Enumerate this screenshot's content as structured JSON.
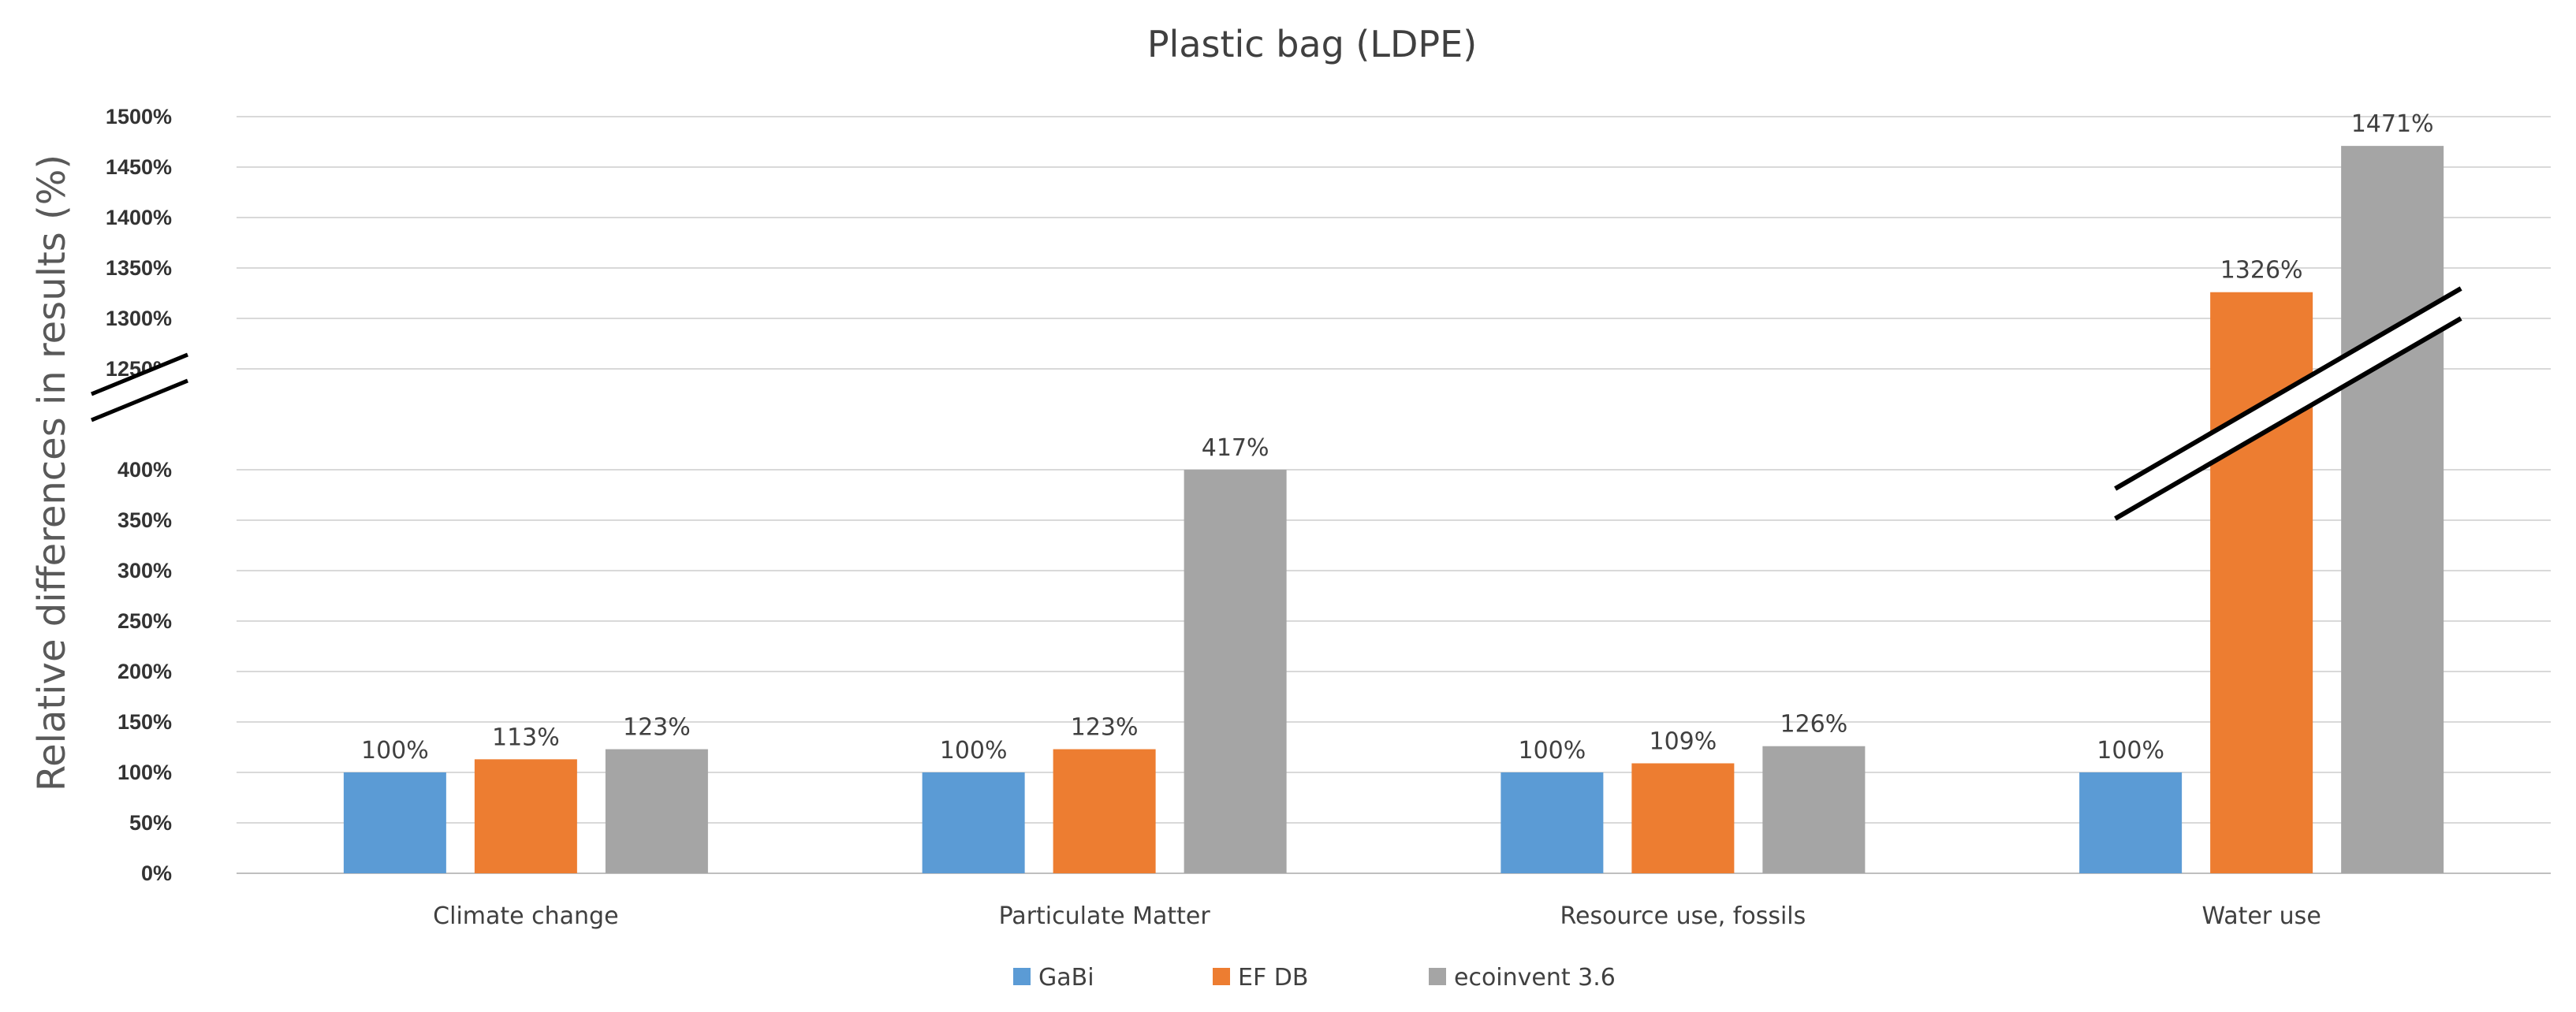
{
  "chart_data": {
    "type": "bar",
    "title": "Plastic bag (LDPE)",
    "ylabel": "Relative differences in results (%)",
    "xlabel": "",
    "categories": [
      "Climate change",
      "Particulate Matter",
      "Resource use, fossils",
      "Water use"
    ],
    "series": [
      {
        "name": "GaBi",
        "color": "#5B9BD5",
        "values": [
          100,
          100,
          100,
          100
        ],
        "labels": [
          "100%",
          "100%",
          "100%",
          "100%"
        ]
      },
      {
        "name": "EF DB",
        "color": "#ED7D31",
        "values": [
          113,
          123,
          109,
          1326
        ],
        "labels": [
          "113%",
          "123%",
          "109%",
          "1326%"
        ]
      },
      {
        "name": "ecoinvent 3.6",
        "color": "#A5A5A5",
        "values": [
          123,
          417,
          126,
          1471
        ],
        "labels": [
          "123%",
          "417%",
          "126%",
          "1471%"
        ]
      }
    ],
    "y_axis_break": {
      "lower_range": [
        0,
        400
      ],
      "upper_range": [
        1250,
        1500
      ]
    },
    "yticks_lower": [
      0,
      50,
      100,
      150,
      200,
      250,
      300,
      350,
      400
    ],
    "yticks_upper": [
      1250,
      1300,
      1350,
      1400,
      1450,
      1500
    ],
    "ytick_labels_lower": [
      "0%",
      "50%",
      "100%",
      "150%",
      "200%",
      "250%",
      "300%",
      "350%",
      "400%"
    ],
    "ytick_labels_upper": [
      "1250%",
      "1300%",
      "1350%",
      "1400%",
      "1450%",
      "1500%"
    ],
    "grid": true,
    "legend_position": "bottom"
  }
}
